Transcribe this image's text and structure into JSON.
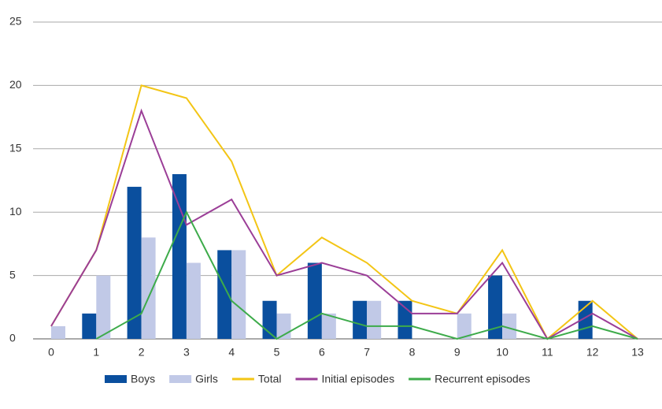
{
  "chart_data": {
    "type": "bar-line",
    "x": [
      0,
      1,
      2,
      3,
      4,
      5,
      6,
      7,
      8,
      9,
      10,
      11,
      12,
      13
    ],
    "xticks": [
      0,
      1,
      2,
      3,
      4,
      5,
      6,
      7,
      8,
      9,
      10,
      11,
      12,
      13
    ],
    "ylim": [
      0,
      25
    ],
    "yticks": [
      0,
      5,
      10,
      15,
      20,
      25
    ],
    "grid": true,
    "legend": "bottom",
    "series": [
      {
        "name": "Boys",
        "type": "bar",
        "color": "#0a4f9e",
        "values": [
          0,
          2,
          12,
          13,
          7,
          3,
          6,
          3,
          3,
          0,
          5,
          0,
          3,
          0
        ]
      },
      {
        "name": "Girls",
        "type": "bar",
        "color": "#c1c9e7",
        "values": [
          1,
          5,
          8,
          6,
          7,
          2,
          2,
          3,
          0,
          2,
          2,
          0,
          0,
          0
        ]
      },
      {
        "name": "Total",
        "type": "line",
        "color": "#f3c515",
        "values": [
          1,
          7,
          20,
          19,
          14,
          5,
          8,
          6,
          3,
          2,
          7,
          0,
          3,
          0
        ]
      },
      {
        "name": "Initial episodes",
        "type": "line",
        "color": "#9b3e97",
        "values": [
          1,
          7,
          18,
          9,
          11,
          5,
          6,
          5,
          2,
          2,
          6,
          0,
          2,
          0
        ]
      },
      {
        "name": "Recurrent episodes",
        "type": "line",
        "color": "#3dab4a",
        "values": [
          null,
          0,
          2,
          10,
          3,
          0,
          2,
          1,
          1,
          0,
          1,
          0,
          1,
          0
        ]
      }
    ]
  }
}
